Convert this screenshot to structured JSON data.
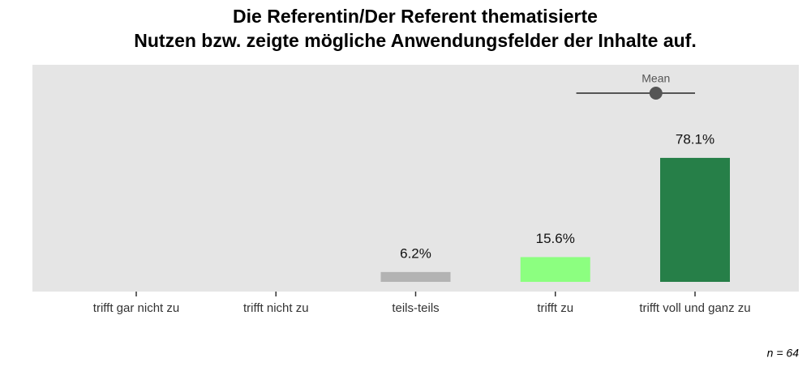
{
  "chart_data": {
    "type": "bar",
    "title": [
      "Die Referentin/Der Referent thematisierte",
      "Nutzen bzw. zeigte mögliche Anwendungsfelder der Inhalte auf."
    ],
    "categories": [
      "trifft gar nicht zu",
      "trifft nicht zu",
      "teils-teils",
      "trifft zu",
      "trifft voll und ganz zu"
    ],
    "values": [
      0,
      0,
      6.2,
      15.6,
      78.1
    ],
    "value_labels": [
      null,
      null,
      "6.2%",
      "15.6%",
      "78.1%"
    ],
    "colors": [
      "#b3b3b3",
      "#b3b3b3",
      "#b3b3b3",
      "#8cff80",
      "#267f48"
    ],
    "ylim": [
      0,
      100
    ],
    "mean": {
      "label": "Mean",
      "value": 4.72,
      "low": 4.15,
      "high": 5
    },
    "note": "n = 64"
  }
}
